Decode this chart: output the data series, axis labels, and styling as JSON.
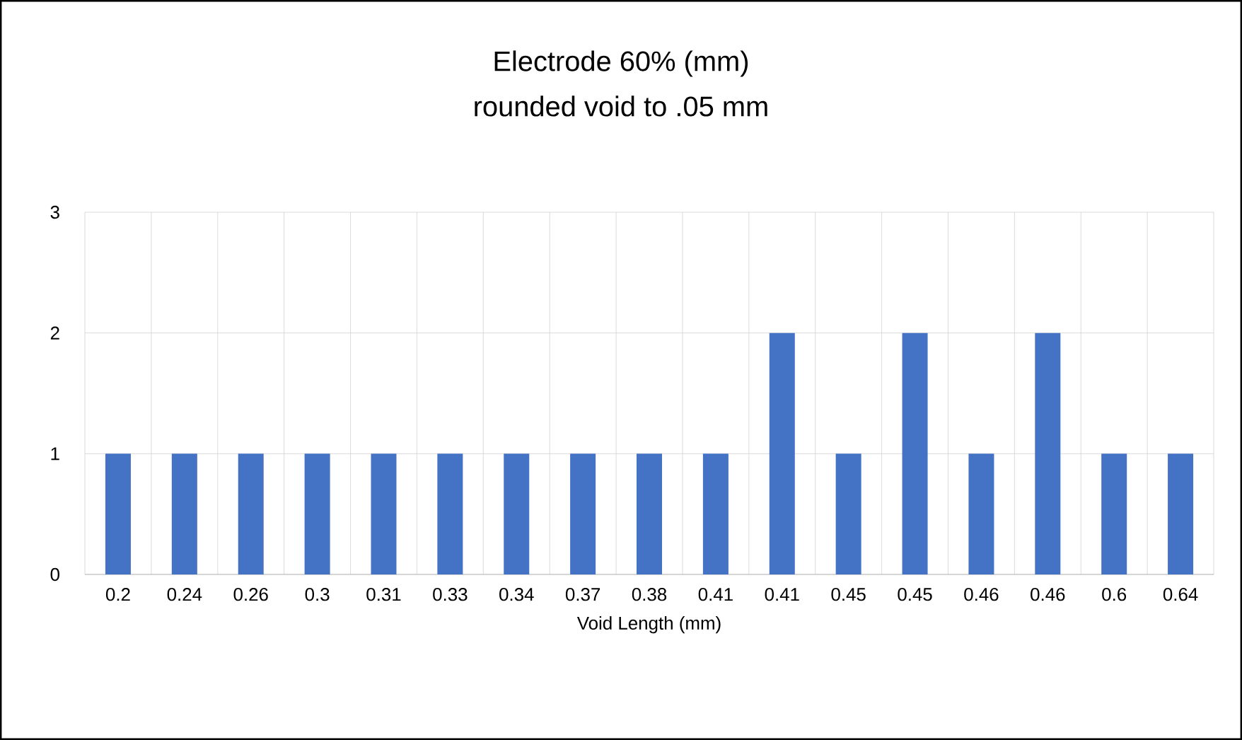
{
  "chart_data": {
    "type": "bar",
    "title": "Electrode 60% (mm)",
    "subtitle": "rounded void to .05 mm",
    "xlabel": "Void Length (mm)",
    "categories": [
      "0.2",
      "0.24",
      "0.26",
      "0.3",
      "0.31",
      "0.33",
      "0.34",
      "0.37",
      "0.38",
      "0.41",
      "0.41",
      "0.45",
      "0.45",
      "0.46",
      "0.46",
      "0.6",
      "0.64"
    ],
    "values": [
      1,
      1,
      1,
      1,
      1,
      1,
      1,
      1,
      1,
      1,
      2,
      1,
      2,
      1,
      2,
      1,
      1
    ],
    "color": "#4472c4",
    "ylim": [
      0,
      3
    ],
    "yticks": [
      0,
      1,
      2,
      3
    ],
    "grid": true
  }
}
